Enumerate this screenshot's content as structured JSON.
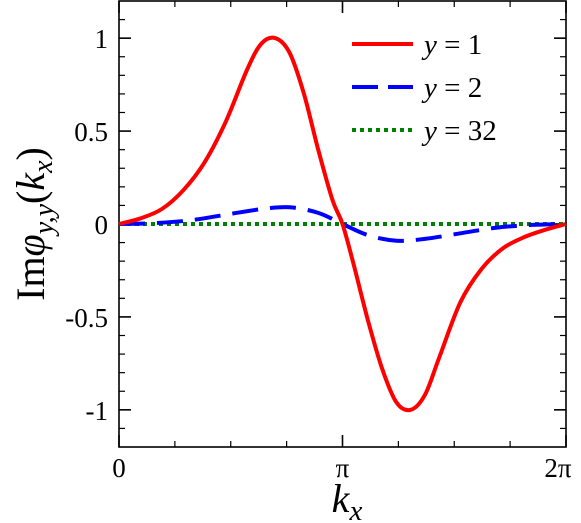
{
  "chart_data": {
    "type": "line",
    "title": "",
    "xlabel": "k_x",
    "ylabel": "Imφ_{y,y}(k_x)",
    "xlim": [
      0,
      6.2832
    ],
    "ylim": [
      -1.2,
      1.2
    ],
    "xticks": [
      {
        "value": 0,
        "label": "0"
      },
      {
        "value": 3.1416,
        "label": "π"
      },
      {
        "value": 6.2832,
        "label": "2π"
      }
    ],
    "yticks": [
      {
        "value": 1,
        "label": "1"
      },
      {
        "value": 0.5,
        "label": "0.5"
      },
      {
        "value": 0,
        "label": "0"
      },
      {
        "value": -0.5,
        "label": "-0.5"
      },
      {
        "value": -1,
        "label": "-1"
      }
    ],
    "grid": false,
    "legend": "top-right",
    "series": [
      {
        "name": "y = 1",
        "color": "#ff0000",
        "style": "solid",
        "x": [
          0,
          0.3,
          0.6,
          0.9,
          1.2,
          1.5,
          1.8,
          2.0,
          2.2,
          2.4,
          2.6,
          2.8,
          3.0,
          3.1416,
          3.3,
          3.5,
          3.7,
          3.9,
          4.1,
          4.3,
          4.5,
          4.8,
          5.1,
          5.4,
          5.7,
          6.0,
          6.2832
        ],
        "y": [
          0,
          0.03,
          0.08,
          0.18,
          0.33,
          0.55,
          0.83,
          0.97,
          1.0,
          0.92,
          0.7,
          0.4,
          0.13,
          0,
          -0.22,
          -0.52,
          -0.78,
          -0.96,
          -1.0,
          -0.92,
          -0.72,
          -0.42,
          -0.24,
          -0.13,
          -0.07,
          -0.03,
          0
        ]
      },
      {
        "name": "y = 2",
        "color": "#0000ff",
        "style": "dashed",
        "x": [
          0,
          0.5,
          1.0,
          1.5,
          2.0,
          2.4,
          2.8,
          3.1416,
          3.5,
          3.9,
          4.3,
          4.8,
          5.3,
          5.8,
          6.2832
        ],
        "y": [
          0,
          0.005,
          0.02,
          0.05,
          0.08,
          0.09,
          0.06,
          0,
          -0.06,
          -0.09,
          -0.08,
          -0.05,
          -0.02,
          -0.005,
          0
        ]
      },
      {
        "name": "y = 32",
        "color": "#008000",
        "style": "dotted",
        "x": [
          0,
          6.2832
        ],
        "y": [
          0,
          0
        ]
      }
    ]
  }
}
